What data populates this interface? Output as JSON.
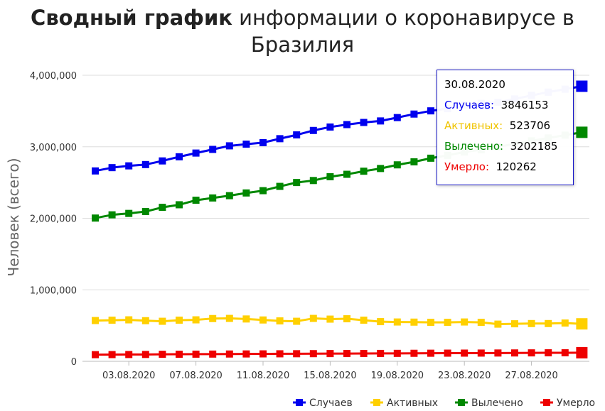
{
  "header": {
    "title_bold": "Сводный график",
    "title_rest": " информации о коронавирусе в Бразилия"
  },
  "chart_data": {
    "type": "line",
    "ylabel": "Человек (всего)",
    "ylim": [
      0,
      4000000
    ],
    "y_ticks": [
      "4,000,000",
      "3,000,000",
      "2,000,000",
      "1,000,000",
      "0"
    ],
    "y_tick_values": [
      4000000,
      3000000,
      2000000,
      1000000,
      0
    ],
    "x": [
      "01.08.2020",
      "02.08.2020",
      "03.08.2020",
      "04.08.2020",
      "05.08.2020",
      "06.08.2020",
      "07.08.2020",
      "08.08.2020",
      "09.08.2020",
      "10.08.2020",
      "11.08.2020",
      "12.08.2020",
      "13.08.2020",
      "14.08.2020",
      "15.08.2020",
      "16.08.2020",
      "17.08.2020",
      "18.08.2020",
      "19.08.2020",
      "20.08.2020",
      "21.08.2020",
      "22.08.2020",
      "23.08.2020",
      "24.08.2020",
      "25.08.2020",
      "26.08.2020",
      "27.08.2020",
      "28.08.2020",
      "29.08.2020",
      "30.08.2020"
    ],
    "x_tick_labels": [
      "03.08.2020",
      "07.08.2020",
      "11.08.2020",
      "15.08.2020",
      "19.08.2020",
      "23.08.2020",
      "27.08.2020"
    ],
    "x_tick_indices": [
      2,
      6,
      10,
      14,
      18,
      22,
      26
    ],
    "series": [
      {
        "name": "Случаев",
        "color": "#0000ee",
        "values": [
          2662000,
          2708000,
          2733000,
          2751000,
          2802000,
          2860000,
          2912000,
          2963000,
          3013000,
          3036000,
          3058000,
          3113000,
          3166000,
          3228000,
          3276000,
          3310000,
          3340000,
          3361000,
          3408000,
          3457000,
          3502000,
          3532000,
          3582000,
          3606000,
          3622000,
          3669000,
          3718000,
          3764000,
          3805000,
          3846153
        ]
      },
      {
        "name": "Активных",
        "color": "#ffd000",
        "values": [
          570000,
          575000,
          580000,
          568000,
          560000,
          575000,
          580000,
          598000,
          600000,
          592000,
          578000,
          565000,
          560000,
          600000,
          590000,
          595000,
          575000,
          555000,
          550000,
          548000,
          545000,
          545000,
          550000,
          545000,
          520000,
          525000,
          528000,
          528000,
          535000,
          523706
        ]
      },
      {
        "name": "Вылечено",
        "color": "#008800",
        "values": [
          2003000,
          2048000,
          2068000,
          2094000,
          2153000,
          2189000,
          2252000,
          2284000,
          2316000,
          2354000,
          2386000,
          2446000,
          2500000,
          2528000,
          2581000,
          2615000,
          2658000,
          2696000,
          2747000,
          2789000,
          2840000,
          2880000,
          2927000,
          2958000,
          3000000,
          3040000,
          3083000,
          3123000,
          3162000,
          3202185
        ]
      },
      {
        "name": "Умерло",
        "color": "#ee0000",
        "values": [
          93000,
          94000,
          95000,
          96000,
          98000,
          99000,
          100000,
          101000,
          102000,
          103000,
          104000,
          105000,
          106000,
          107000,
          108000,
          108500,
          109000,
          110000,
          111000,
          112000,
          113000,
          114000,
          114500,
          115000,
          116000,
          117000,
          118000,
          119000,
          119500,
          120262
        ]
      }
    ],
    "legend_position": "bottom-right",
    "grid": "horizontal"
  },
  "tooltip": {
    "date": "30.08.2020",
    "rows": [
      {
        "label": "Случаев:",
        "value": "3846153",
        "color": "#0000ee"
      },
      {
        "label": "Активных:",
        "value": "523706",
        "color": "#ffd000"
      },
      {
        "label": "Вылечено:",
        "value": "3202185",
        "color": "#008800"
      },
      {
        "label": "Умерло:",
        "value": "120262",
        "color": "#ee0000"
      }
    ]
  }
}
